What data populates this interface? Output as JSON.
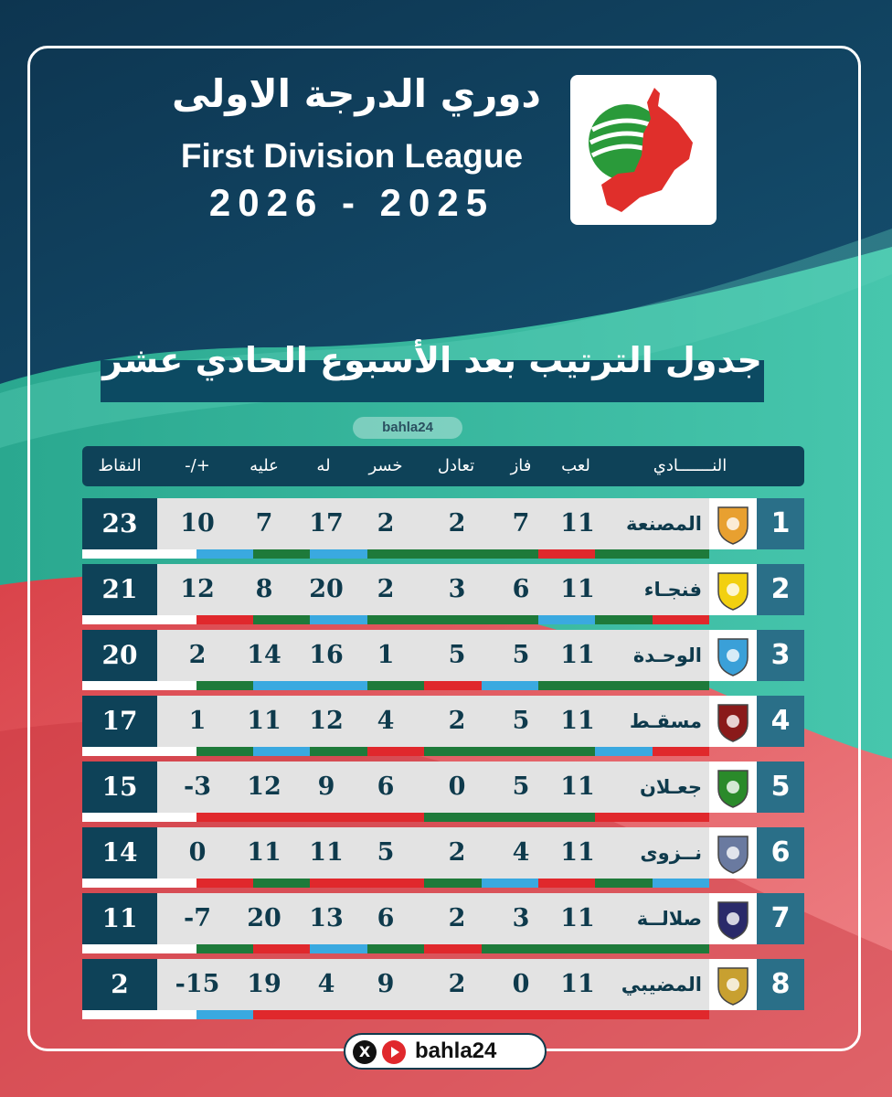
{
  "header": {
    "title_ar": "دوري الدرجة الاولى",
    "title_en": "First Division League",
    "season": "2026 - 2025"
  },
  "banner": {
    "text": "جدول الترتيب بعد الأسبوع الحادي عشر"
  },
  "watermark": {
    "text": "bahla24"
  },
  "columns": {
    "club": "النـــــــادي",
    "played": "لعب",
    "won": "فاز",
    "drawn": "تعادل",
    "lost": "خسر",
    "gf": "له",
    "ga": "عليه",
    "gd": "+/-",
    "points": "النقاط"
  },
  "colors": {
    "navy": "#0e4258",
    "teal": "#2eb8a0",
    "stripe_green": "#1e7a3a",
    "stripe_red": "#e0282c",
    "stripe_blue": "#3aa9e0",
    "stripe_white": "#ffffff"
  },
  "teams": [
    {
      "rank": "1",
      "name": "المصنعة",
      "played": "11",
      "won": "7",
      "drawn": "2",
      "lost": "2",
      "gf": "17",
      "ga": "7",
      "gd": "10",
      "points": "23",
      "form": [
        "green",
        "green",
        "red",
        "green",
        "green",
        "green",
        "blue",
        "green",
        "blue",
        "white",
        "white"
      ]
    },
    {
      "rank": "2",
      "name": "فنجـاء",
      "played": "11",
      "won": "6",
      "drawn": "3",
      "lost": "2",
      "gf": "20",
      "ga": "8",
      "gd": "12",
      "points": "21",
      "form": [
        "red",
        "green",
        "blue",
        "green",
        "green",
        "green",
        "blue",
        "green",
        "red",
        "white",
        "white"
      ]
    },
    {
      "rank": "3",
      "name": "الوحـدة",
      "played": "11",
      "won": "5",
      "drawn": "5",
      "lost": "1",
      "gf": "16",
      "ga": "14",
      "gd": "2",
      "points": "20",
      "form": [
        "green",
        "green",
        "green",
        "blue",
        "red",
        "green",
        "blue",
        "blue",
        "green",
        "white",
        "white"
      ]
    },
    {
      "rank": "4",
      "name": "مسقـط",
      "played": "11",
      "won": "5",
      "drawn": "2",
      "lost": "4",
      "gf": "12",
      "ga": "11",
      "gd": "1",
      "points": "17",
      "form": [
        "red",
        "blue",
        "green",
        "green",
        "green",
        "red",
        "green",
        "blue",
        "green",
        "white",
        "white"
      ]
    },
    {
      "rank": "5",
      "name": "جعـلان",
      "played": "11",
      "won": "5",
      "drawn": "0",
      "lost": "6",
      "gf": "9",
      "ga": "12",
      "gd": "-3",
      "points": "15",
      "form": [
        "red",
        "red",
        "green",
        "green",
        "green",
        "red",
        "red",
        "red",
        "red",
        "white",
        "white"
      ]
    },
    {
      "rank": "6",
      "name": "نــزوى",
      "played": "11",
      "won": "4",
      "drawn": "2",
      "lost": "5",
      "gf": "11",
      "ga": "11",
      "gd": "0",
      "points": "14",
      "form": [
        "blue",
        "green",
        "red",
        "blue",
        "green",
        "red",
        "red",
        "green",
        "red",
        "white",
        "white"
      ]
    },
    {
      "rank": "7",
      "name": "صلالــة",
      "played": "11",
      "won": "3",
      "drawn": "2",
      "lost": "6",
      "gf": "13",
      "ga": "20",
      "gd": "-7",
      "points": "11",
      "form": [
        "green",
        "green",
        "green",
        "green",
        "red",
        "green",
        "blue",
        "red",
        "green",
        "white",
        "white"
      ]
    },
    {
      "rank": "8",
      "name": "المضيبي",
      "played": "11",
      "won": "0",
      "drawn": "2",
      "lost": "9",
      "gf": "4",
      "ga": "19",
      "gd": "-15",
      "points": "2",
      "form": [
        "red",
        "red",
        "red",
        "red",
        "red",
        "red",
        "red",
        "red",
        "blue",
        "white",
        "white"
      ]
    }
  ],
  "footer": {
    "handle": "bahla24",
    "x_label": "X"
  }
}
